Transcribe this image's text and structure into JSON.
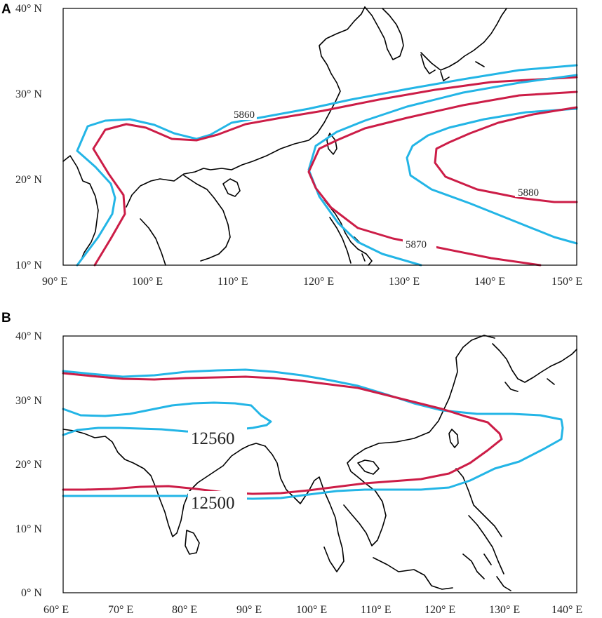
{
  "panels": [
    {
      "letter": "A",
      "lat_ticks": [
        "40° N",
        "30° N",
        "20° N",
        "10° N"
      ],
      "lon_ticks": [
        "90° E",
        "100° E",
        "110° E",
        "120° E",
        "130° E",
        "140° E",
        "150° E"
      ],
      "contour_labels": [
        "5860",
        "5880",
        "5870"
      ]
    },
    {
      "letter": "B",
      "lat_ticks": [
        "40° N",
        "30° N",
        "20° N",
        "10° N",
        "0° N"
      ],
      "lon_ticks": [
        "60° E",
        "70° E",
        "80° E",
        "90° E",
        "100° E",
        "110° E",
        "120° E",
        "130° E",
        "140° E"
      ],
      "contour_labels": [
        "12560",
        "12500"
      ]
    }
  ],
  "colors": {
    "contour_a": "#23b5e6",
    "contour_b": "#cc1d47",
    "coastline": "#000000"
  }
}
